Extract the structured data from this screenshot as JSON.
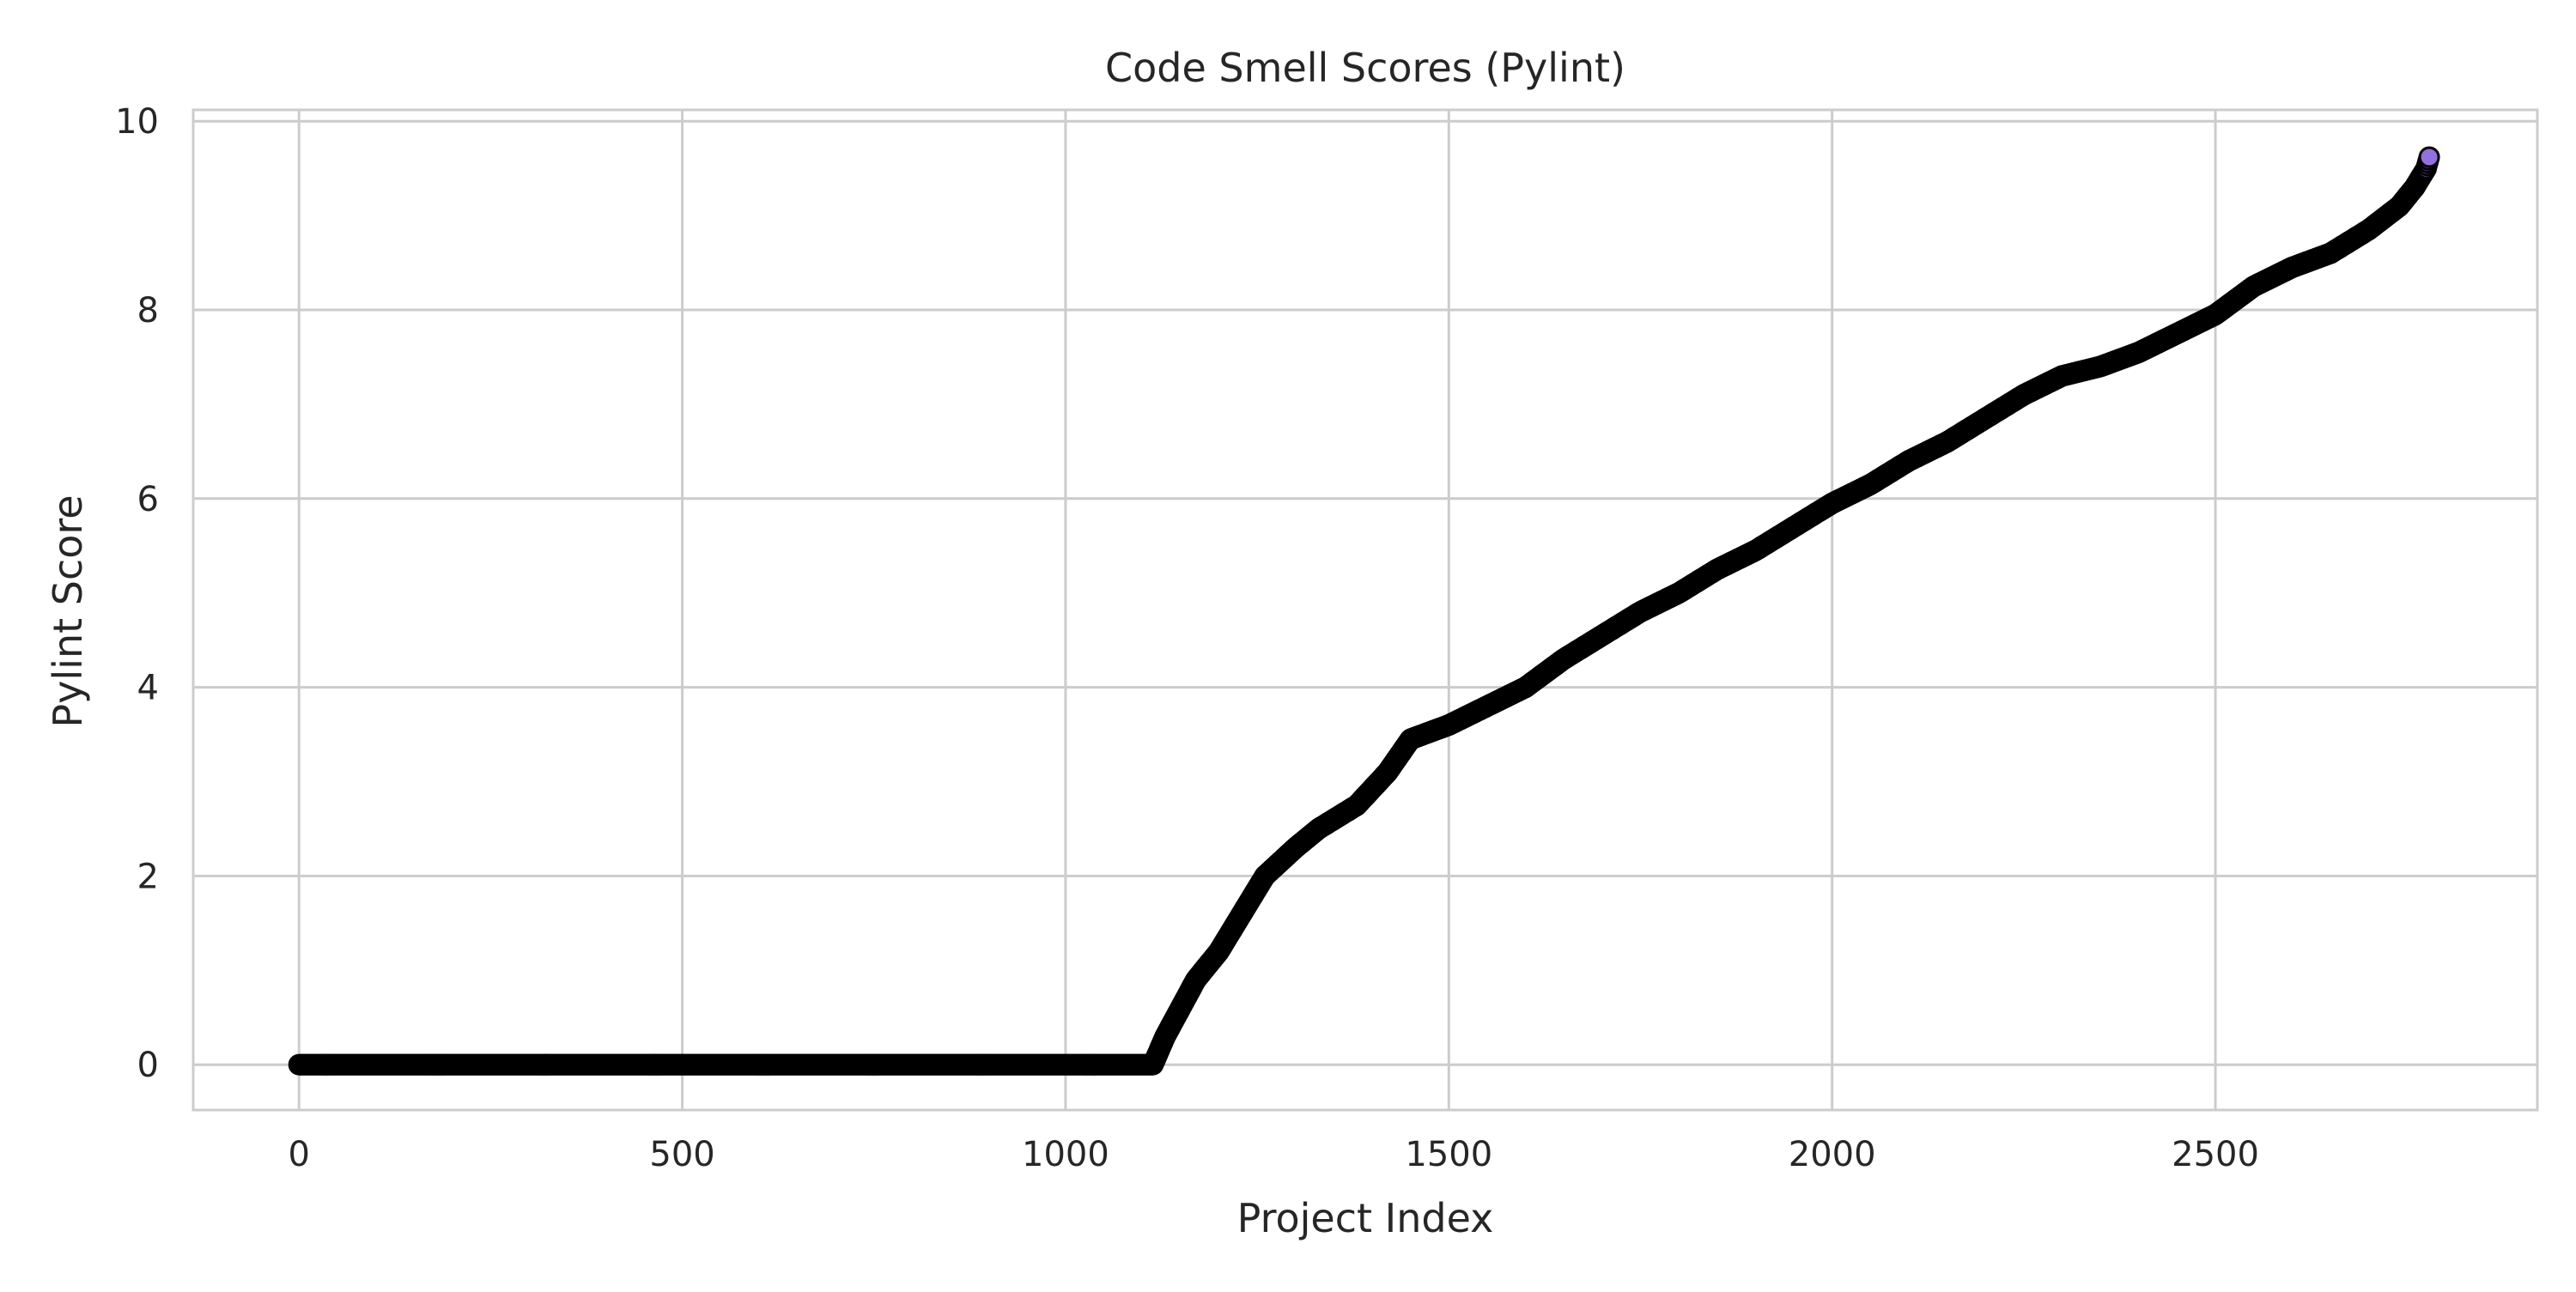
{
  "chart_data": {
    "type": "scatter",
    "title": "Code Smell Scores (Pylint)",
    "xlabel": "Project Index",
    "ylabel": "Pylint Score",
    "xlim": [
      -138,
      2920
    ],
    "ylim": [
      -0.48,
      10.12
    ],
    "x_ticks": [
      0,
      500,
      1000,
      1500,
      2000,
      2500
    ],
    "y_ticks": [
      0,
      2,
      4,
      6,
      8,
      10
    ],
    "x_tick_labels": [
      "0",
      "500",
      "1000",
      "1500",
      "2000",
      "2500"
    ],
    "y_tick_labels": [
      "0",
      "2",
      "4",
      "6",
      "8",
      "10"
    ],
    "grid": true,
    "legend": "none",
    "n_points": 2780,
    "zero_count": 1115,
    "marker_fill": "#9370DB",
    "marker_edge": "#000000",
    "curve_knots": [
      [
        1114,
        0.0
      ],
      [
        1130,
        0.3
      ],
      [
        1150,
        0.6
      ],
      [
        1170,
        0.9
      ],
      [
        1200,
        1.2
      ],
      [
        1230,
        1.6
      ],
      [
        1260,
        2.0
      ],
      [
        1300,
        2.3
      ],
      [
        1330,
        2.5
      ],
      [
        1380,
        2.75
      ],
      [
        1420,
        3.1
      ],
      [
        1450,
        3.45
      ],
      [
        1500,
        3.6
      ],
      [
        1550,
        3.8
      ],
      [
        1600,
        4.0
      ],
      [
        1650,
        4.3
      ],
      [
        1700,
        4.55
      ],
      [
        1750,
        4.8
      ],
      [
        1800,
        5.0
      ],
      [
        1850,
        5.25
      ],
      [
        1900,
        5.45
      ],
      [
        1950,
        5.7
      ],
      [
        2000,
        5.95
      ],
      [
        2050,
        6.15
      ],
      [
        2100,
        6.4
      ],
      [
        2150,
        6.6
      ],
      [
        2200,
        6.85
      ],
      [
        2250,
        7.1
      ],
      [
        2300,
        7.3
      ],
      [
        2350,
        7.4
      ],
      [
        2400,
        7.55
      ],
      [
        2450,
        7.75
      ],
      [
        2500,
        7.95
      ],
      [
        2550,
        8.25
      ],
      [
        2600,
        8.45
      ],
      [
        2650,
        8.6
      ],
      [
        2700,
        8.85
      ],
      [
        2740,
        9.1
      ],
      [
        2760,
        9.3
      ],
      [
        2775,
        9.5
      ],
      [
        2779,
        9.62
      ]
    ]
  }
}
